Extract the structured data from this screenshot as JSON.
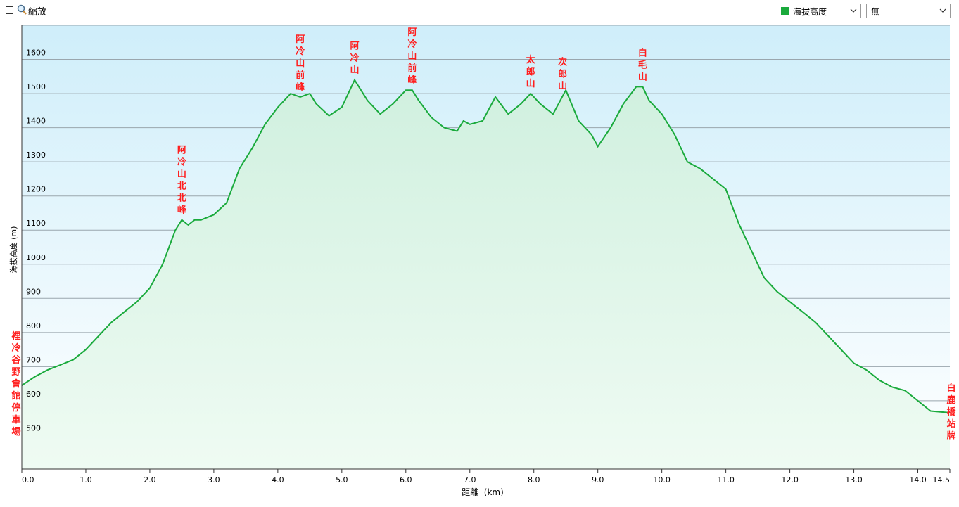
{
  "toolbar": {
    "zoom_label": "縮放",
    "series_select": "海拔高度",
    "second_select": "無",
    "series_color": "#1aaa3c"
  },
  "chart_data": {
    "type": "area",
    "xlabel": "距離  (km)",
    "ylabel": "海拔高度 (m)",
    "xlim": [
      0,
      14.5
    ],
    "ylim": [
      400,
      1700
    ],
    "xticks": [
      0.0,
      1.0,
      2.0,
      3.0,
      4.0,
      5.0,
      6.0,
      7.0,
      8.0,
      9.0,
      10.0,
      11.0,
      12.0,
      13.0,
      14.0,
      14.5
    ],
    "xtick_labels": [
      "0.0",
      "1.0",
      "2.0",
      "3.0",
      "4.0",
      "5.0",
      "6.0",
      "7.0",
      "8.0",
      "9.0",
      "10.0",
      "11.0",
      "12.0",
      "13.0",
      "14.0",
      "14.5"
    ],
    "yticks": [
      500,
      600,
      700,
      800,
      900,
      1000,
      1100,
      1200,
      1300,
      1400,
      1500,
      1600
    ],
    "line_color": "#1aaa3c",
    "series": [
      {
        "x": [
          0.0,
          0.2,
          0.4,
          0.6,
          0.8,
          1.0,
          1.2,
          1.4,
          1.6,
          1.8,
          2.0,
          2.2,
          2.4,
          2.5,
          2.6,
          2.7,
          2.8,
          3.0,
          3.2,
          3.4,
          3.6,
          3.8,
          4.0,
          4.1,
          4.2,
          4.35,
          4.5,
          4.6,
          4.8,
          5.0,
          5.2,
          5.4,
          5.6,
          5.8,
          6.0,
          6.1,
          6.2,
          6.4,
          6.6,
          6.8,
          6.9,
          7.0,
          7.2,
          7.4,
          7.6,
          7.8,
          7.95,
          8.1,
          8.3,
          8.5,
          8.7,
          8.9,
          9.0,
          9.2,
          9.4,
          9.6,
          9.7,
          9.8,
          10.0,
          10.2,
          10.4,
          10.6,
          10.8,
          11.0,
          11.2,
          11.4,
          11.6,
          11.8,
          12.0,
          12.2,
          12.4,
          12.6,
          12.8,
          13.0,
          13.2,
          13.4,
          13.6,
          13.8,
          14.0,
          14.2,
          14.5
        ],
        "y": [
          645,
          670,
          690,
          705,
          720,
          750,
          790,
          830,
          860,
          890,
          930,
          1000,
          1100,
          1130,
          1115,
          1130,
          1130,
          1145,
          1180,
          1280,
          1340,
          1410,
          1460,
          1480,
          1500,
          1490,
          1500,
          1470,
          1435,
          1460,
          1540,
          1480,
          1440,
          1470,
          1510,
          1510,
          1480,
          1430,
          1400,
          1390,
          1420,
          1410,
          1420,
          1490,
          1440,
          1470,
          1500,
          1470,
          1440,
          1510,
          1420,
          1380,
          1345,
          1400,
          1470,
          1520,
          1520,
          1480,
          1440,
          1380,
          1300,
          1280,
          1250,
          1220,
          1120,
          1040,
          960,
          920,
          890,
          860,
          830,
          790,
          750,
          710,
          690,
          660,
          640,
          630,
          600,
          570,
          565
        ]
      }
    ],
    "annotations": [
      {
        "x": 0.0,
        "text": "裡冷谷野會館停車場",
        "side": "left"
      },
      {
        "x": 2.5,
        "text": "阿冷山北北峰"
      },
      {
        "x": 4.35,
        "text": "阿冷山前峰"
      },
      {
        "x": 5.2,
        "text": "阿冷山"
      },
      {
        "x": 6.1,
        "text": "阿冷山前峰"
      },
      {
        "x": 7.95,
        "text": "太郎山"
      },
      {
        "x": 8.45,
        "text": "次郎山"
      },
      {
        "x": 9.7,
        "text": "白毛山"
      },
      {
        "x": 14.5,
        "text": "白鹿橋站牌",
        "side": "right"
      }
    ]
  }
}
